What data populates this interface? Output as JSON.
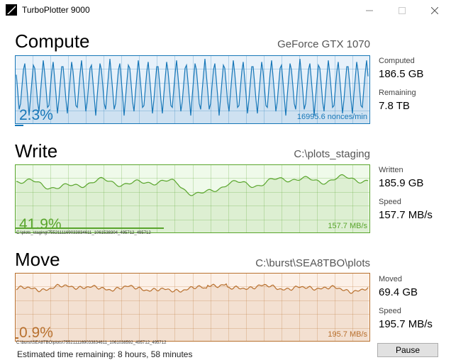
{
  "window": {
    "title": "TurboPlotter 9000",
    "icon": "app-logo-icon",
    "controls": [
      "minimize-icon",
      "maximize-icon",
      "close-icon"
    ]
  },
  "compute": {
    "title": "Compute",
    "device": "GeForce GTX 1070",
    "percent": "2.3%",
    "rate": "16995.6 nonces/min",
    "color": "#1777b8",
    "fill": "#e7f1fa",
    "progress": 0.023,
    "stats": [
      {
        "label": "Computed",
        "value": "186.5 GB"
      },
      {
        "label": "Remaining",
        "value": "7.8 TB"
      }
    ]
  },
  "write": {
    "title": "Write",
    "path": "C:\\plots_staging",
    "percent": "41.9%",
    "rate": "157.7 MB/s",
    "file": "C:\\plots_staging\\7552111169033834611_1061538304_495712_495712",
    "color": "#59a52c",
    "fill": "#effaea",
    "progress": 0.419,
    "stats": [
      {
        "label": "Written",
        "value": "185.9 GB"
      },
      {
        "label": "Speed",
        "value": "157.7 MB/s"
      }
    ]
  },
  "move": {
    "title": "Move",
    "path": "C:\\burst\\SEA8TBO\\plots",
    "percent": "0.9%",
    "rate": "195.7 MB/s",
    "file": "C:\\burst\\SEA8TBO\\plots\\7552111169033834611_1061038592_495712_495712",
    "color": "#b8702e",
    "fill": "#fcf0e7",
    "progress": 0.009,
    "stats": [
      {
        "label": "Moved",
        "value": "69.4 GB"
      },
      {
        "label": "Speed",
        "value": "195.7 MB/s"
      }
    ]
  },
  "footer": {
    "eta": "Estimated time remaining: 8 hours, 58 minutes",
    "pause_label": "Pause"
  }
}
